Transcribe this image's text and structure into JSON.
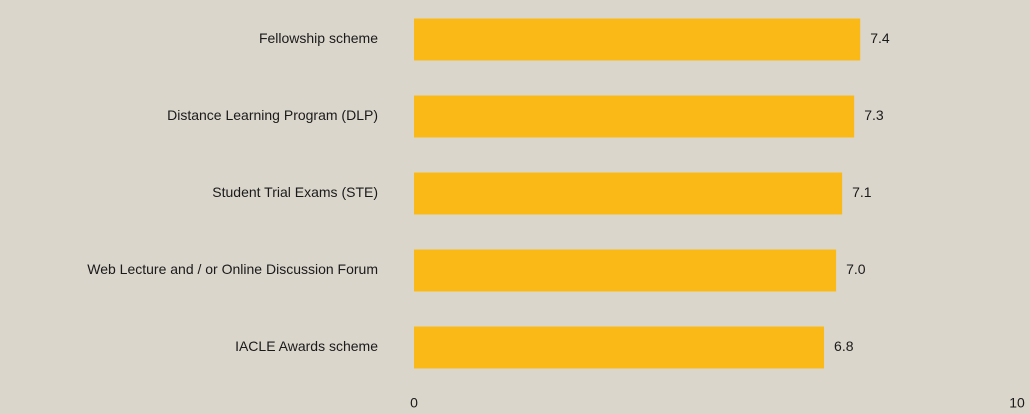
{
  "chart_data": {
    "type": "hbar",
    "categories": [
      "Fellowship scheme",
      "Distance Learning Program (DLP)",
      "Student Trial Exams (STE)",
      "Web Lecture and / or Online Discussion Forum",
      "IACLE Awards scheme"
    ],
    "values": [
      7.4,
      7.3,
      7.1,
      7.0,
      6.8
    ],
    "value_labels": [
      "7.4",
      "7.3",
      "7.1",
      "7.0",
      "6.8"
    ],
    "color": "#fbb917",
    "xlim": [
      0,
      10
    ],
    "xticks": [
      0,
      10
    ],
    "grid": false
  }
}
